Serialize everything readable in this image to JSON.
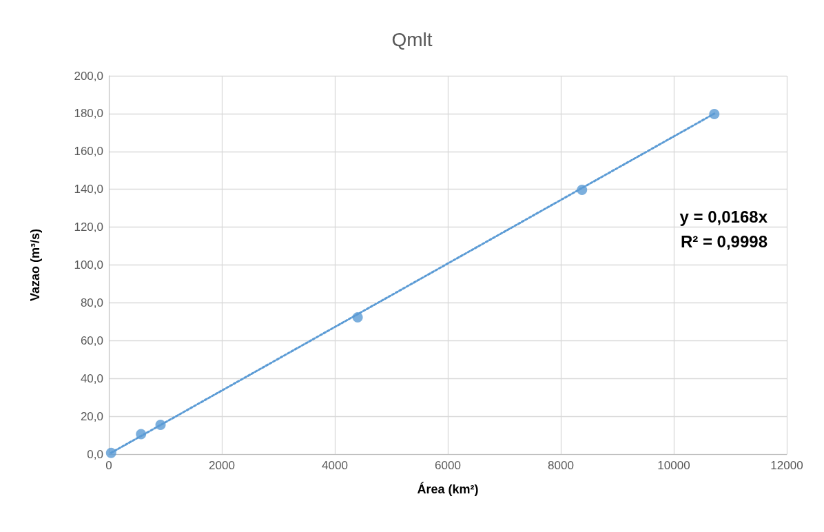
{
  "chart_data": {
    "type": "scatter",
    "title": "Qmlt",
    "xlabel": "Área (km²)",
    "ylabel": "Vazao (m³/s)",
    "x": [
      40,
      570,
      915,
      4404,
      8375,
      10717
    ],
    "series": [
      {
        "color": "#5b9bd5",
        "marker": "circle",
        "values": [
          0.6,
          10.6,
          15.5,
          72.3,
          139.7,
          179.8
        ]
      },
      {
        "type": "line",
        "color": "#5b9bd5",
        "marker": "none",
        "line_style": "dotted",
        "x": [
          40,
          10717
        ],
        "values": [
          0.7,
          180.0
        ]
      }
    ],
    "xlim": [
      0,
      12000
    ],
    "xticks": [
      0,
      2000,
      4000,
      6000,
      8000,
      10000,
      12000
    ],
    "ylim": [
      0,
      200
    ],
    "yticks": [
      {
        "value": 0,
        "label": "0,0"
      },
      {
        "value": 20,
        "label": "20,0"
      },
      {
        "value": 40,
        "label": "40,0"
      },
      {
        "value": 60,
        "label": "60,0"
      },
      {
        "value": 80,
        "label": "80,0"
      },
      {
        "value": 100,
        "label": "100,0"
      },
      {
        "value": 120,
        "label": "120,0"
      },
      {
        "value": 140,
        "label": "140,0"
      },
      {
        "value": 160,
        "label": "160,0"
      },
      {
        "value": 180,
        "label": "180,0"
      },
      {
        "value": 200,
        "label": "200,0"
      }
    ],
    "grid": true,
    "annotations": [
      "y = 0,0168x",
      "R² = 0,9998"
    ]
  }
}
